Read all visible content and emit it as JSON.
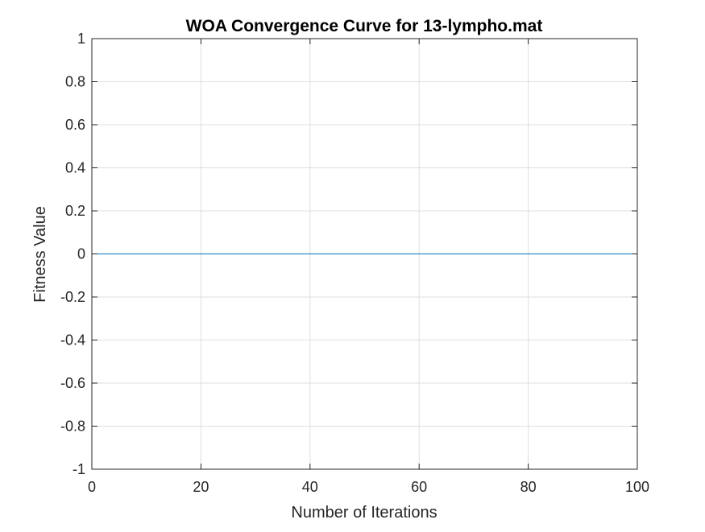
{
  "chart_data": {
    "type": "line",
    "title": "WOA Convergence Curve for 13-lympho.mat",
    "xlabel": "Number of Iterations",
    "ylabel": "Fitness Value",
    "xlim": [
      0,
      100
    ],
    "ylim": [
      -1,
      1
    ],
    "xticks": [
      0,
      20,
      40,
      60,
      80,
      100
    ],
    "xtick_labels": [
      "0",
      "20",
      "40",
      "60",
      "80",
      "100"
    ],
    "yticks": [
      -1,
      -0.8,
      -0.6,
      -0.4,
      -0.2,
      0,
      0.2,
      0.4,
      0.6,
      0.8,
      1
    ],
    "ytick_labels": [
      "-1",
      "-0.8",
      "-0.6",
      "-0.4",
      "-0.2",
      "0",
      "0.2",
      "0.4",
      "0.6",
      "0.8",
      "1"
    ],
    "grid": true,
    "series": [
      {
        "color": "#0072BD",
        "x": [
          0,
          100
        ],
        "y": [
          0,
          0
        ]
      }
    ],
    "colors": {
      "axis": "#262626",
      "grid": "#DFDFDF",
      "background": "#FFFFFF"
    }
  }
}
